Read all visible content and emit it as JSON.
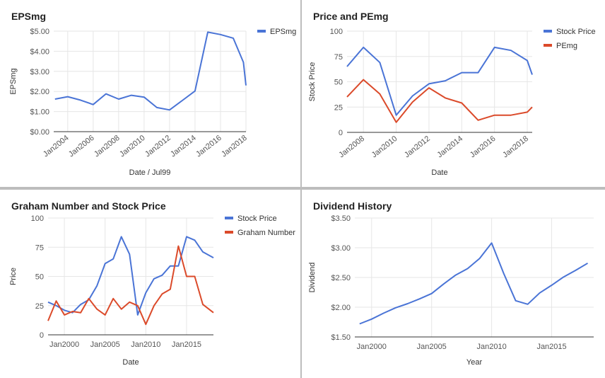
{
  "charts": [
    {
      "title": "EPSmg",
      "chart_data": {
        "type": "line",
        "xlabel": "Date / Jul99",
        "ylabel": "EPSmg",
        "x_ticks": [
          {
            "label": "Jan2004",
            "x": 2004
          },
          {
            "label": "Jan2006",
            "x": 2006
          },
          {
            "label": "Jan2008",
            "x": 2008
          },
          {
            "label": "Jan2010",
            "x": 2010
          },
          {
            "label": "Jan2012",
            "x": 2012
          },
          {
            "label": "Jan2014",
            "x": 2014
          },
          {
            "label": "Jan2016",
            "x": 2016
          },
          {
            "label": "Jan2018",
            "x": 2018
          }
        ],
        "y_ticks": [
          {
            "label": "$0.00",
            "v": 0
          },
          {
            "label": "$1.00",
            "v": 1
          },
          {
            "label": "$2.00",
            "v": 2
          },
          {
            "label": "$3.00",
            "v": 3
          },
          {
            "label": "$4.00",
            "v": 4
          },
          {
            "label": "$5.00",
            "v": 5
          }
        ],
        "xlim": [
          2002.9,
          2018.0
        ],
        "ylim": [
          0,
          5
        ],
        "legend_position": "right",
        "series": [
          {
            "name": "EPSmg",
            "color": "#4a74d6",
            "x": [
              2003.0,
              2004.0,
              2005.0,
              2006.0,
              2007.0,
              2008.0,
              2009.0,
              2010.0,
              2011.0,
              2012.0,
              2013.0,
              2014.0,
              2015.0,
              2016.0,
              2017.0,
              2017.8,
              2018.0
            ],
            "y": [
              1.62,
              1.74,
              1.57,
              1.35,
              1.88,
              1.62,
              1.81,
              1.72,
              1.2,
              1.08,
              1.55,
              2.02,
              4.95,
              4.83,
              4.65,
              3.45,
              2.3
            ]
          }
        ]
      }
    },
    {
      "title": "Price and PEmg",
      "chart_data": {
        "type": "line",
        "xlabel": "Date",
        "ylabel": "Stock Price",
        "x_ticks": [
          {
            "label": "Jan2008",
            "x": 2008
          },
          {
            "label": "Jan2010",
            "x": 2010
          },
          {
            "label": "Jan2012",
            "x": 2012
          },
          {
            "label": "Jan2014",
            "x": 2014
          },
          {
            "label": "Jan2016",
            "x": 2016
          },
          {
            "label": "Jan2018",
            "x": 2018
          }
        ],
        "y_ticks": [
          {
            "label": "0",
            "v": 0
          },
          {
            "label": "25",
            "v": 25
          },
          {
            "label": "50",
            "v": 50
          },
          {
            "label": "75",
            "v": 75
          },
          {
            "label": "100",
            "v": 100
          }
        ],
        "xlim": [
          2007.0,
          2018.3
        ],
        "ylim": [
          0,
          100
        ],
        "legend_position": "right",
        "series": [
          {
            "name": "Stock Price",
            "color": "#4a74d6",
            "x": [
              2007.0,
              2008.0,
              2009.0,
              2010.0,
              2011.0,
              2012.0,
              2013.0,
              2014.0,
              2015.0,
              2016.0,
              2017.0,
              2018.0,
              2018.3
            ],
            "y": [
              65,
              84,
              69,
              17,
              36,
              48,
              51,
              59,
              59,
              84,
              81,
              71,
              57
            ]
          },
          {
            "name": "PEmg",
            "color": "#db4a2a",
            "x": [
              2007.0,
              2008.0,
              2009.0,
              2010.0,
              2011.0,
              2012.0,
              2013.0,
              2014.0,
              2015.0,
              2016.0,
              2017.0,
              2018.0,
              2018.3
            ],
            "y": [
              35,
              52,
              38,
              10,
              30,
              44,
              34,
              29,
              12,
              17,
              17,
              20,
              25
            ]
          }
        ]
      }
    },
    {
      "title": "Graham Number and Stock Price",
      "chart_data": {
        "type": "line",
        "xlabel": "Date",
        "ylabel": "Price",
        "x_ticks": [
          {
            "label": "Jan2000",
            "x": 2000
          },
          {
            "label": "Jan2005",
            "x": 2005
          },
          {
            "label": "Jan2010",
            "x": 2010
          },
          {
            "label": "Jan2015",
            "x": 2015
          }
        ],
        "y_ticks": [
          {
            "label": "0",
            "v": 0
          },
          {
            "label": "25",
            "v": 25
          },
          {
            "label": "50",
            "v": 50
          },
          {
            "label": "75",
            "v": 75
          },
          {
            "label": "100",
            "v": 100
          }
        ],
        "xlim": [
          1998.0,
          2018.3
        ],
        "ylim": [
          0,
          100
        ],
        "legend_position": "right",
        "series": [
          {
            "name": "Stock Price",
            "color": "#4a74d6",
            "x": [
              1998.0,
              1999.0,
              2000.0,
              2001.0,
              2002.0,
              2003.0,
              2004.0,
              2005.0,
              2006.0,
              2007.0,
              2008.0,
              2009.0,
              2010.0,
              2011.0,
              2012.0,
              2013.0,
              2014.0,
              2015.0,
              2016.0,
              2017.0,
              2018.3
            ],
            "y": [
              28,
              25,
              21,
              19,
              26,
              30,
              42,
              61,
              65,
              84,
              69,
              17,
              36,
              48,
              51,
              59,
              59,
              84,
              81,
              71,
              66
            ]
          },
          {
            "name": "Graham Number",
            "color": "#db4a2a",
            "x": [
              1998.0,
              1999.0,
              2000.0,
              2001.0,
              2002.0,
              2003.0,
              2004.0,
              2005.0,
              2006.0,
              2007.0,
              2008.0,
              2009.0,
              2010.0,
              2011.0,
              2012.0,
              2013.0,
              2014.0,
              2015.0,
              2016.0,
              2017.0,
              2018.3
            ],
            "y": [
              12,
              29,
              17,
              20,
              19,
              31,
              22,
              17,
              31,
              22,
              28,
              25,
              9,
              25,
              35,
              39,
              76,
              50,
              50,
              26,
              19
            ]
          }
        ]
      }
    },
    {
      "title": "Dividend History",
      "chart_data": {
        "type": "line",
        "xlabel": "Year",
        "ylabel": "Dividend",
        "x_ticks": [
          {
            "label": "Jan2000",
            "x": 2000
          },
          {
            "label": "Jan2005",
            "x": 2005
          },
          {
            "label": "Jan2010",
            "x": 2010
          },
          {
            "label": "Jan2015",
            "x": 2015
          }
        ],
        "y_ticks": [
          {
            "label": "$1.50",
            "v": 1.5
          },
          {
            "label": "$2.00",
            "v": 2.0
          },
          {
            "label": "$2.50",
            "v": 2.5
          },
          {
            "label": "$3.00",
            "v": 3.0
          },
          {
            "label": "$3.50",
            "v": 3.5
          }
        ],
        "xlim": [
          1998.6,
          2018.5
        ],
        "ylim": [
          1.5,
          3.5
        ],
        "legend_position": "none",
        "series": [
          {
            "name": "",
            "color": "#4a74d6",
            "x": [
              1999.0,
              2000.0,
              2001.0,
              2002.0,
              2003.0,
              2004.0,
              2005.0,
              2006.0,
              2007.0,
              2008.0,
              2009.0,
              2010.0,
              2011.0,
              2012.0,
              2013.0,
              2014.0,
              2015.0,
              2016.0,
              2017.0,
              2018.0
            ],
            "y": [
              1.72,
              1.8,
              1.9,
              1.99,
              2.06,
              2.14,
              2.23,
              2.39,
              2.54,
              2.65,
              2.82,
              3.08,
              2.57,
              2.11,
              2.05,
              2.24,
              2.37,
              2.51,
              2.62,
              2.74
            ]
          }
        ]
      }
    }
  ]
}
